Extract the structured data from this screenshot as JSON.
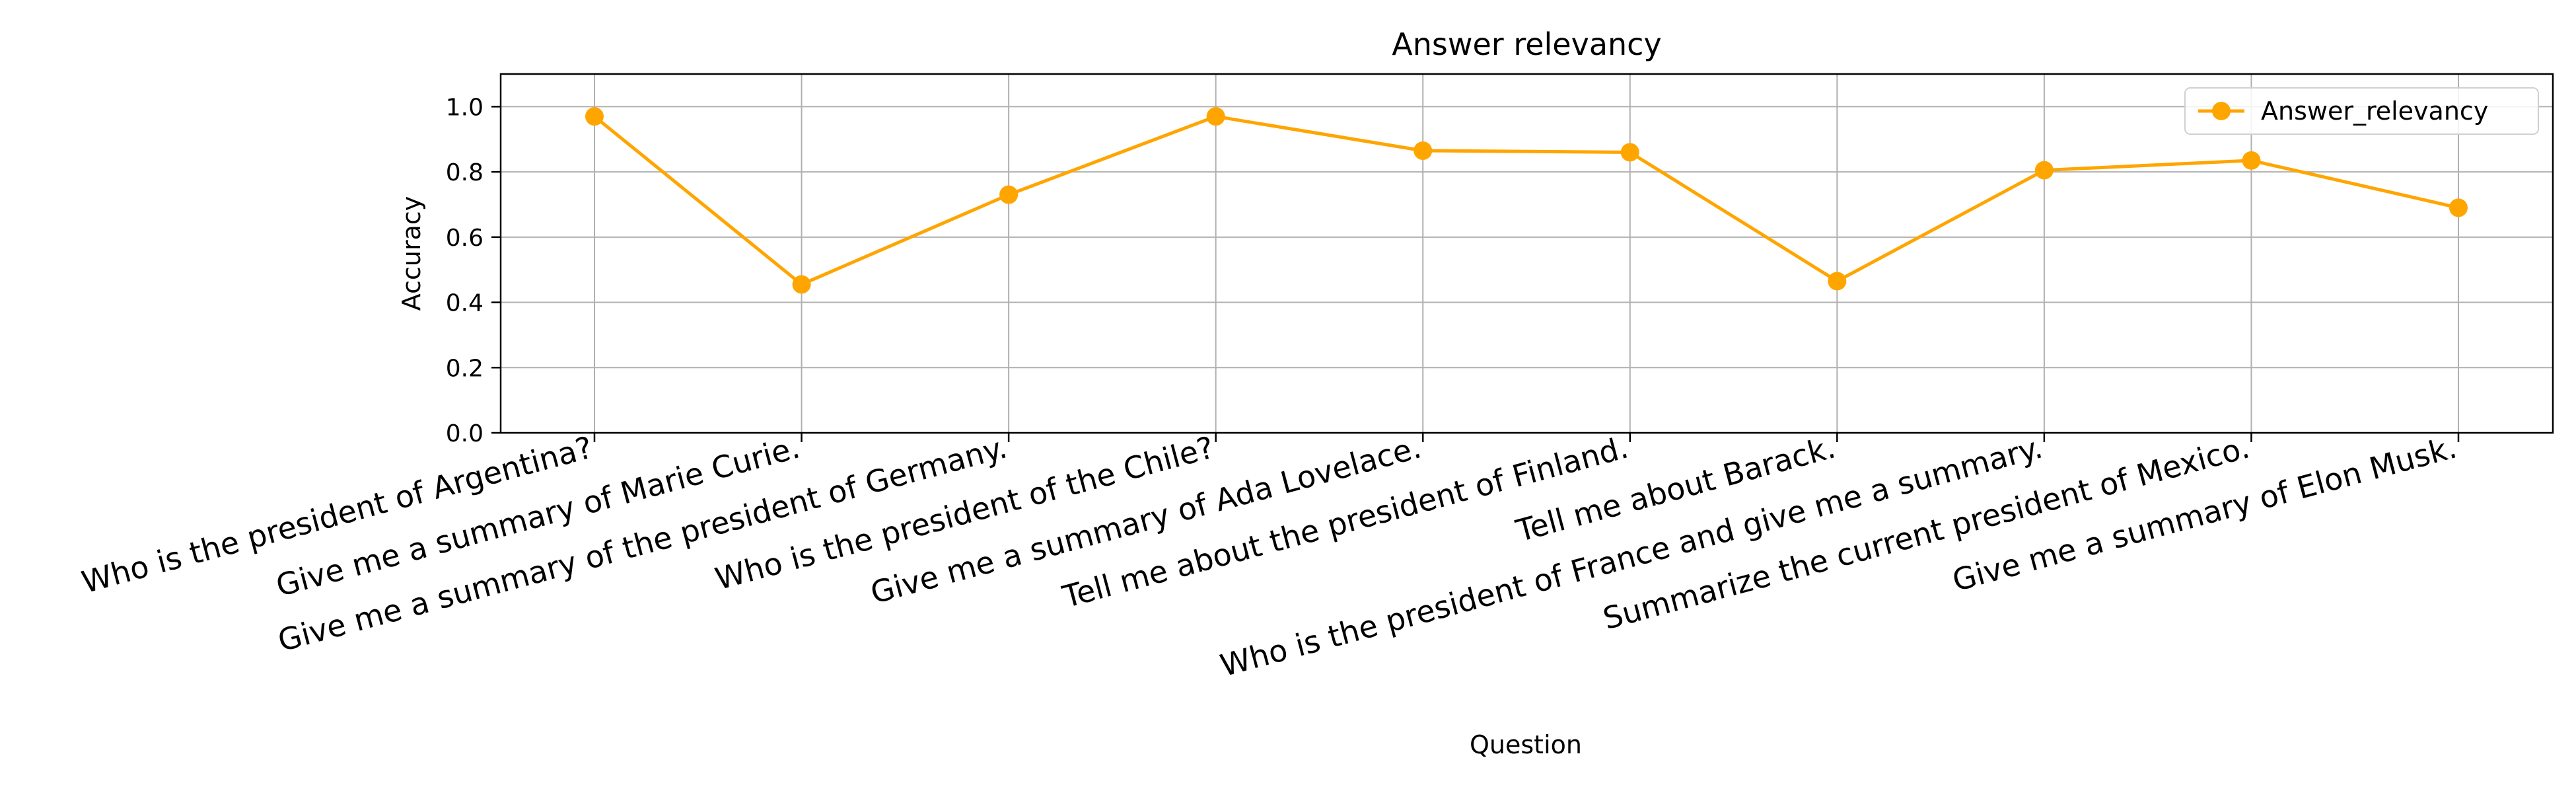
{
  "chart_data": {
    "type": "line",
    "title": "Answer relevancy",
    "xlabel": "Question",
    "ylabel": "Accuracy",
    "ylim": [
      0,
      1.1
    ],
    "yticks": [
      "0.0",
      "0.2",
      "0.4",
      "0.6",
      "0.8",
      "1.0"
    ],
    "grid": true,
    "legend_position": "top-right",
    "categories": [
      "Who is the president of Argentina?",
      "Give me a summary of Marie Curie.",
      "Give me a summary of the president of Germany.",
      "Who is the president of the Chile?",
      "Give me a summary of Ada Lovelace.",
      "Tell me about the president of Finland.",
      "Tell me about Barack.",
      "Who is the president of France and give me a summary.",
      "Summarize the current president of Mexico.",
      "Give me a summary of Elon Musk."
    ],
    "series": [
      {
        "name": "Answer_relevancy",
        "color": "#ffa500",
        "marker": "circle",
        "values": [
          0.97,
          0.455,
          0.73,
          0.97,
          0.865,
          0.86,
          0.465,
          0.805,
          0.835,
          0.69
        ]
      }
    ]
  }
}
